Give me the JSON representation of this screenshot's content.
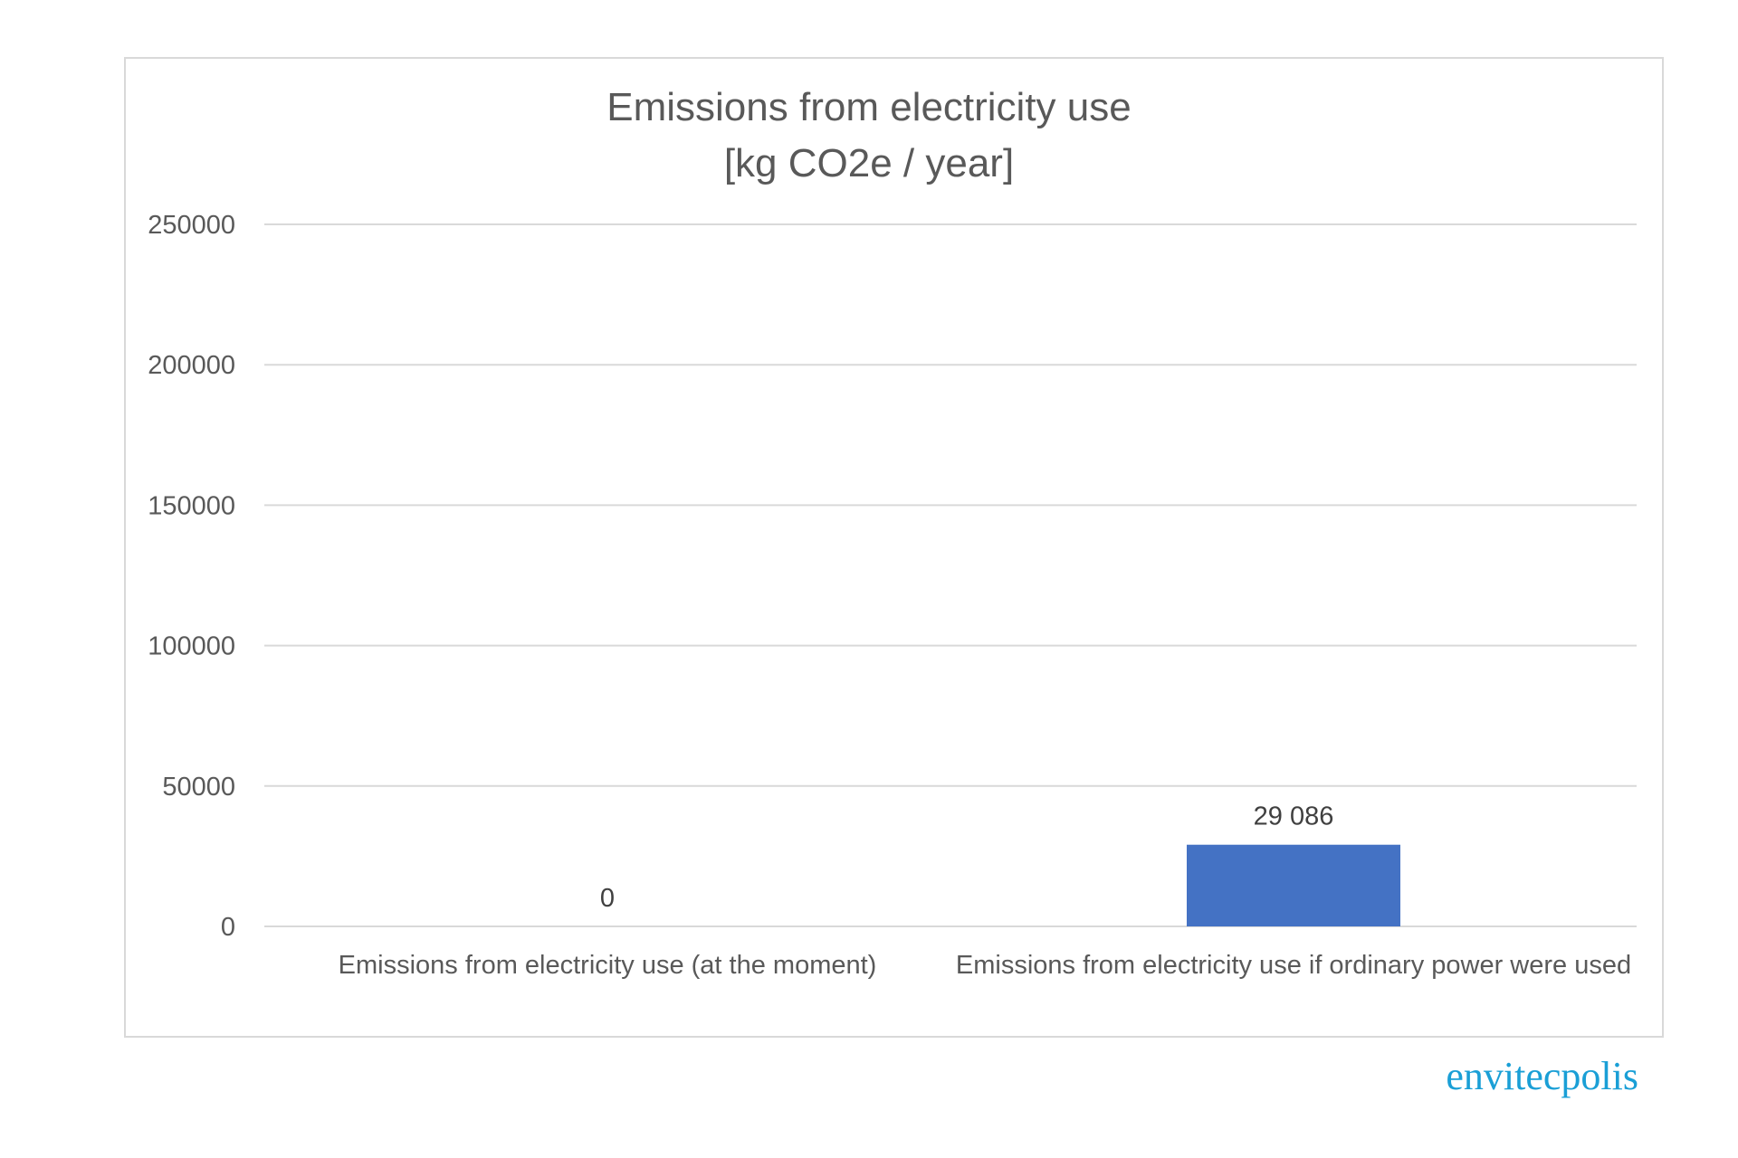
{
  "chart_data": {
    "type": "bar",
    "title": "Emissions from electricity use",
    "subtitle": "[kg CO2e / year]",
    "categories": [
      "Emissions from electricity use (at the moment)",
      "Emissions from electricity use if ordinary power were used"
    ],
    "values": [
      0,
      29086
    ],
    "value_labels": [
      "0",
      "29 086"
    ],
    "ylim": [
      0,
      250000
    ],
    "yticks": [
      0,
      50000,
      100000,
      150000,
      200000,
      250000
    ],
    "ytick_labels": [
      "0",
      "50000",
      "100000",
      "150000",
      "200000",
      "250000"
    ],
    "xlabel": "",
    "ylabel": "",
    "grid": true,
    "legend": "none",
    "bar_color": "#4472c4"
  },
  "branding": {
    "logo_text": "envitecpolis",
    "logo_color": "#1a9fd6"
  }
}
